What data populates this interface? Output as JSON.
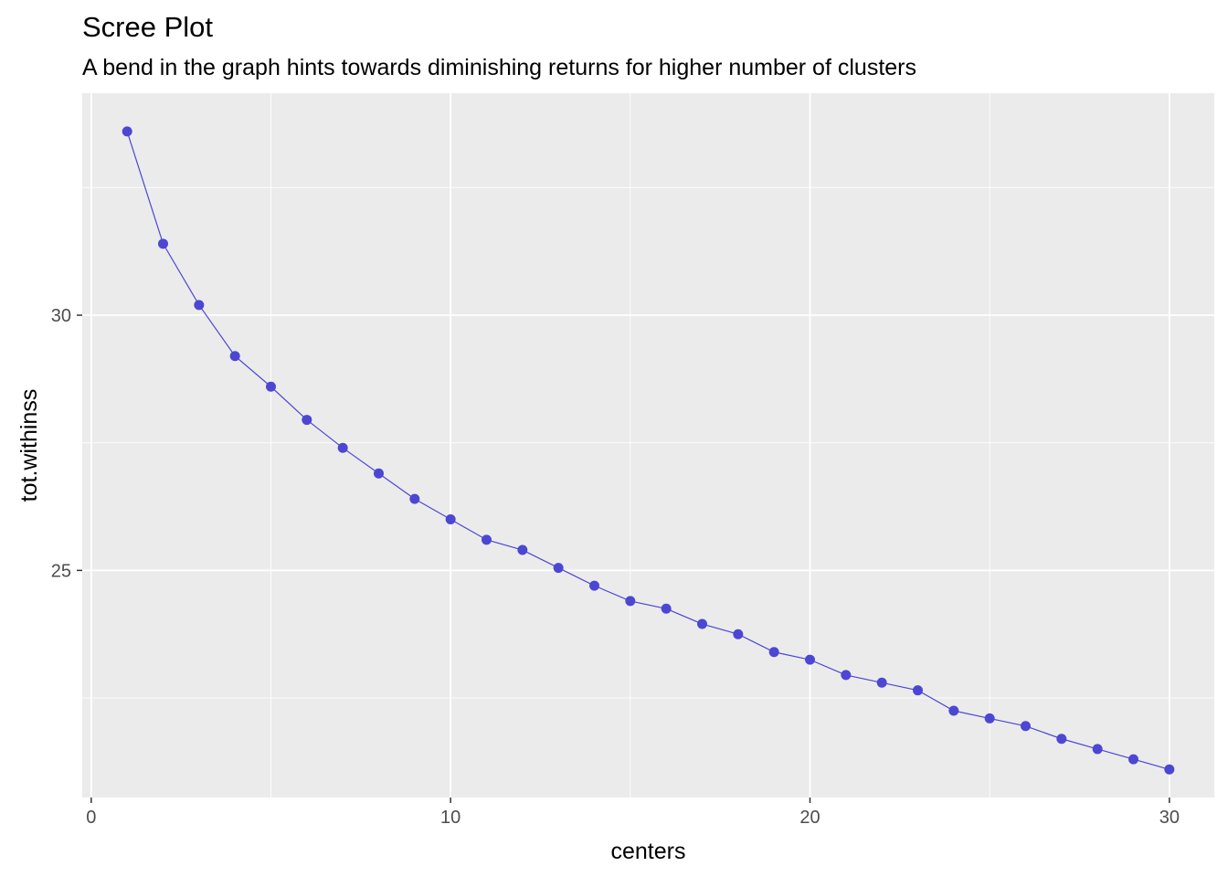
{
  "chart_data": {
    "type": "line",
    "title": "Scree Plot",
    "subtitle": "A bend in the graph hints towards diminishing returns for higher number of clusters",
    "xlabel": "centers",
    "ylabel": "tot.withinss",
    "xlim": [
      -0.25,
      31.25
    ],
    "ylim": [
      20.55,
      34.35
    ],
    "x_ticks": [
      0,
      10,
      20,
      30
    ],
    "y_ticks": [
      25,
      30
    ],
    "grid": true,
    "background": "#ebebeb",
    "grid_color": "#ffffff",
    "series": [
      {
        "color": "#4b47d3",
        "x": [
          1,
          2,
          3,
          4,
          5,
          6,
          7,
          8,
          9,
          10,
          11,
          12,
          13,
          14,
          15,
          16,
          17,
          18,
          19,
          20,
          21,
          22,
          23,
          24,
          25,
          26,
          27,
          28,
          29,
          30
        ],
        "y": [
          33.6,
          31.4,
          30.2,
          29.2,
          28.6,
          27.95,
          27.4,
          26.9,
          26.4,
          26.0,
          25.6,
          25.4,
          25.05,
          24.7,
          24.4,
          24.25,
          23.95,
          23.75,
          23.4,
          23.25,
          22.95,
          22.8,
          22.65,
          22.25,
          22.1,
          21.95,
          21.7,
          21.5,
          21.3,
          21.1
        ]
      }
    ]
  }
}
